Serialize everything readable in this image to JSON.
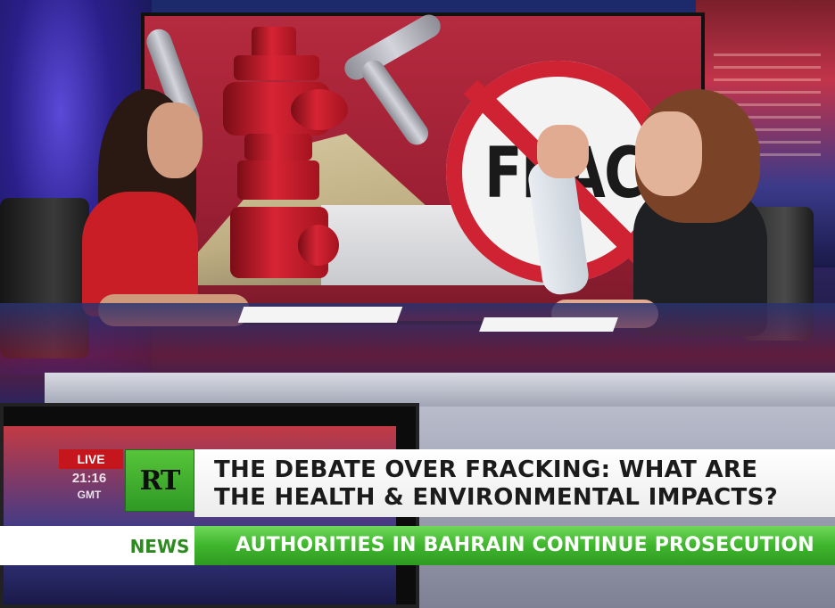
{
  "lower_third": {
    "live_label": "LIVE",
    "time": "21:16",
    "timezone": "GMT",
    "channel_logo_text": "RT",
    "headline_line1": "THE DEBATE OVER FRACKING: WHAT ARE",
    "headline_line2": "THE HEALTH & ENVIRONMENTAL IMPACTS?"
  },
  "ticker": {
    "label": "NEWS",
    "text": "AUTHORITIES IN BAHRAIN CONTINUE PROSECUTION"
  },
  "background_screen": {
    "sign_text": "FRACK"
  },
  "colors": {
    "rt_green": "#3fb52d",
    "live_red": "#c4161c",
    "headline_bg": "#ffffff"
  }
}
